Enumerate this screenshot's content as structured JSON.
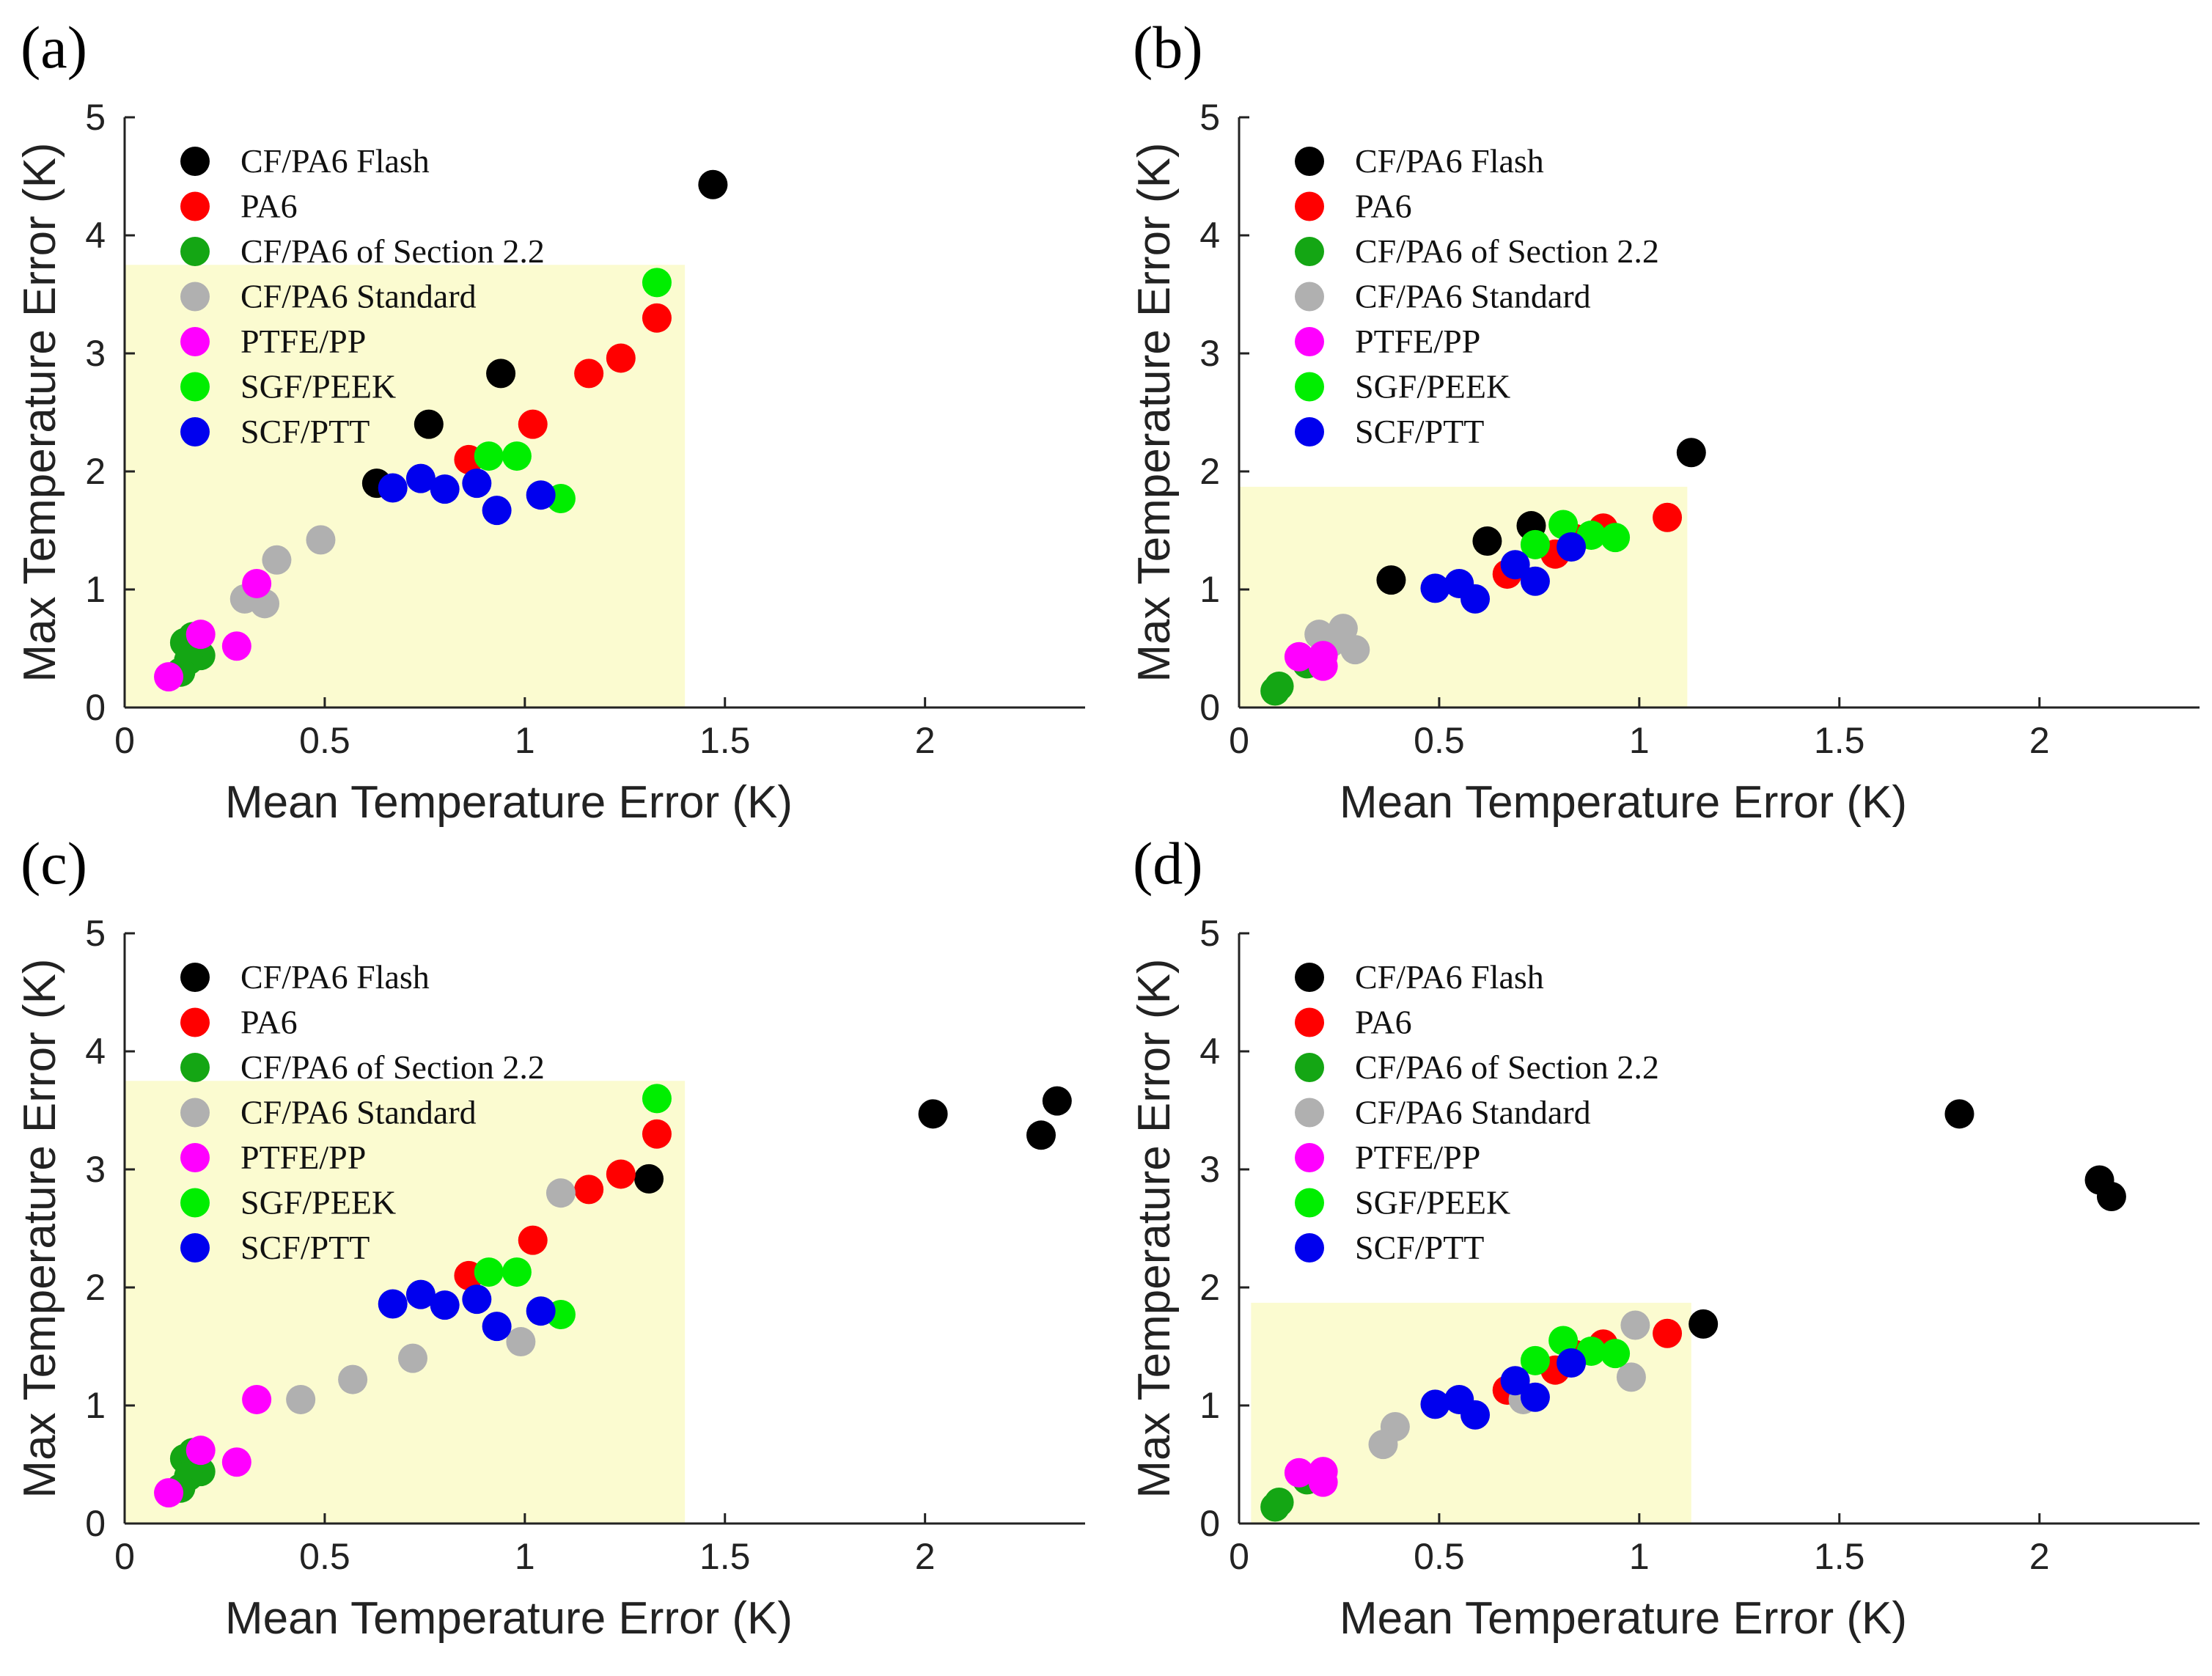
{
  "colors": {
    "background": "#ffffff",
    "highlight": "#fbfbd0",
    "axis": "#222222"
  },
  "chart_data": [
    {
      "type": "scatter",
      "panel": "(a)",
      "xlabel": "Mean Temperature Error (K)",
      "ylabel": "Max Temperature Error (K)",
      "xlim": [
        0,
        2.4
      ],
      "ylim": [
        0,
        5
      ],
      "xticks": [
        0,
        0.5,
        1,
        1.5,
        2
      ],
      "xtick_labels": [
        "0",
        "0.5",
        "1",
        "1.5",
        "2"
      ],
      "yticks": [
        0,
        1,
        2,
        3,
        4,
        5
      ],
      "ytick_labels": [
        "0",
        "1",
        "2",
        "3",
        "4",
        "5"
      ],
      "legend_position": "top-left",
      "highlight_region": {
        "x": [
          0,
          1.4
        ],
        "y": [
          0,
          3.75
        ]
      },
      "series": [
        {
          "name": "CF/PA6 Flash",
          "color": "#000000",
          "x": [
            1.47,
            0.94,
            0.76,
            0.63
          ],
          "y": [
            4.43,
            2.83,
            2.4,
            1.9
          ]
        },
        {
          "name": "PA6",
          "color": "#ff0000",
          "x": [
            1.33,
            1.24,
            1.16,
            1.02,
            0.86
          ],
          "y": [
            3.3,
            2.96,
            2.83,
            2.4,
            2.1
          ]
        },
        {
          "name": "CF/PA6 of Section 2.2",
          "color": "#14a614",
          "x": [
            0.15,
            0.17,
            0.19,
            0.16,
            0.14
          ],
          "y": [
            0.55,
            0.6,
            0.44,
            0.4,
            0.3
          ]
        },
        {
          "name": "CF/PA6 Standard",
          "color": "#b0b0b0",
          "x": [
            0.49,
            0.38,
            0.35,
            0.3
          ],
          "y": [
            1.42,
            1.25,
            0.88,
            0.92
          ]
        },
        {
          "name": "PTFE/PP",
          "color": "#ff00ff",
          "x": [
            0.33,
            0.19,
            0.28,
            0.11
          ],
          "y": [
            1.05,
            0.62,
            0.52,
            0.26
          ]
        },
        {
          "name": "SGF/PEEK",
          "color": "#00ee00",
          "x": [
            1.33,
            0.98,
            0.91,
            1.09
          ],
          "y": [
            3.6,
            2.13,
            2.13,
            1.77
          ]
        },
        {
          "name": "SCF/PTT",
          "color": "#0000ee",
          "x": [
            0.67,
            0.74,
            0.8,
            0.88,
            0.93,
            1.04
          ],
          "y": [
            1.86,
            1.94,
            1.85,
            1.9,
            1.67,
            1.8
          ]
        }
      ]
    },
    {
      "type": "scatter",
      "panel": "(b)",
      "xlabel": "Mean Temperature Error (K)",
      "ylabel": "Max Temperature Error (K)",
      "xlim": [
        0,
        2.4
      ],
      "ylim": [
        0,
        5
      ],
      "xticks": [
        0,
        0.5,
        1,
        1.5,
        2
      ],
      "xtick_labels": [
        "0",
        "0.5",
        "1",
        "1.5",
        "2"
      ],
      "yticks": [
        0,
        1,
        2,
        3,
        4,
        5
      ],
      "ytick_labels": [
        "0",
        "1",
        "2",
        "3",
        "4",
        "5"
      ],
      "legend_position": "top-left",
      "highlight_region": {
        "x": [
          0,
          1.12
        ],
        "y": [
          0,
          1.87
        ]
      },
      "series": [
        {
          "name": "CF/PA6 Flash",
          "color": "#000000",
          "x": [
            1.13,
            0.73,
            0.62,
            0.38
          ],
          "y": [
            2.16,
            1.54,
            1.41,
            1.08
          ]
        },
        {
          "name": "PA6",
          "color": "#ff0000",
          "x": [
            1.07,
            0.91,
            0.84,
            0.79,
            0.67
          ],
          "y": [
            1.61,
            1.52,
            1.43,
            1.3,
            1.13
          ]
        },
        {
          "name": "CF/PA6 of Section 2.2",
          "color": "#14a614",
          "x": [
            0.09,
            0.1,
            0.17
          ],
          "y": [
            0.14,
            0.18,
            0.37
          ]
        },
        {
          "name": "CF/PA6 Standard",
          "color": "#b0b0b0",
          "x": [
            0.2,
            0.26,
            0.29,
            0.23
          ],
          "y": [
            0.62,
            0.67,
            0.49,
            0.55
          ]
        },
        {
          "name": "PTFE/PP",
          "color": "#ff00ff",
          "x": [
            0.15,
            0.21,
            0.21
          ],
          "y": [
            0.43,
            0.44,
            0.35
          ]
        },
        {
          "name": "SGF/PEEK",
          "color": "#00ee00",
          "x": [
            0.81,
            0.74,
            0.88,
            0.94
          ],
          "y": [
            1.55,
            1.38,
            1.46,
            1.44
          ]
        },
        {
          "name": "SCF/PTT",
          "color": "#0000ee",
          "x": [
            0.49,
            0.55,
            0.59,
            0.69,
            0.74,
            0.83
          ],
          "y": [
            1.01,
            1.05,
            0.92,
            1.21,
            1.07,
            1.36
          ]
        }
      ]
    },
    {
      "type": "scatter",
      "panel": "(c)",
      "xlabel": "Mean Temperature Error (K)",
      "ylabel": "Max Temperature Error (K)",
      "xlim": [
        0,
        2.4
      ],
      "ylim": [
        0,
        5
      ],
      "xticks": [
        0,
        0.5,
        1,
        1.5,
        2
      ],
      "xtick_labels": [
        "0",
        "0.5",
        "1",
        "1.5",
        "2"
      ],
      "yticks": [
        0,
        1,
        2,
        3,
        4,
        5
      ],
      "ytick_labels": [
        "0",
        "1",
        "2",
        "3",
        "4",
        "5"
      ],
      "legend_position": "top-left",
      "highlight_region": {
        "x": [
          0,
          1.4
        ],
        "y": [
          0,
          3.75
        ]
      },
      "series": [
        {
          "name": "CF/PA6 Flash",
          "color": "#000000",
          "x": [
            2.33,
            2.02,
            2.29,
            1.31
          ],
          "y": [
            3.58,
            3.47,
            3.29,
            2.92
          ]
        },
        {
          "name": "PA6",
          "color": "#ff0000",
          "x": [
            1.33,
            1.24,
            1.16,
            1.02,
            0.86
          ],
          "y": [
            3.3,
            2.96,
            2.83,
            2.4,
            2.1
          ]
        },
        {
          "name": "CF/PA6 of Section 2.2",
          "color": "#14a614",
          "x": [
            0.15,
            0.17,
            0.19,
            0.16,
            0.14
          ],
          "y": [
            0.55,
            0.6,
            0.44,
            0.4,
            0.3
          ]
        },
        {
          "name": "CF/PA6 Standard",
          "color": "#b0b0b0",
          "x": [
            1.09,
            0.99,
            0.72,
            0.57,
            0.44
          ],
          "y": [
            2.8,
            1.54,
            1.4,
            1.22,
            1.05
          ]
        },
        {
          "name": "PTFE/PP",
          "color": "#ff00ff",
          "x": [
            0.33,
            0.19,
            0.28,
            0.11
          ],
          "y": [
            1.05,
            0.62,
            0.52,
            0.26
          ]
        },
        {
          "name": "SGF/PEEK",
          "color": "#00ee00",
          "x": [
            1.33,
            0.98,
            0.91,
            1.09
          ],
          "y": [
            3.6,
            2.13,
            2.13,
            1.77
          ]
        },
        {
          "name": "SCF/PTT",
          "color": "#0000ee",
          "x": [
            0.67,
            0.74,
            0.8,
            0.88,
            0.93,
            1.04
          ],
          "y": [
            1.86,
            1.94,
            1.85,
            1.9,
            1.67,
            1.8
          ]
        }
      ]
    },
    {
      "type": "scatter",
      "panel": "(d)",
      "xlabel": "Mean Temperature Error (K)",
      "ylabel": "Max Temperature Error (K)",
      "xlim": [
        0,
        2.4
      ],
      "ylim": [
        0,
        5
      ],
      "xticks": [
        0,
        0.5,
        1,
        1.5,
        2
      ],
      "xtick_labels": [
        "0",
        "0.5",
        "1",
        "1.5",
        "2"
      ],
      "yticks": [
        0,
        1,
        2,
        3,
        4,
        5
      ],
      "ytick_labels": [
        "0",
        "1",
        "2",
        "3",
        "4",
        "5"
      ],
      "legend_position": "top-left",
      "highlight_region": {
        "x": [
          0.03,
          1.13
        ],
        "y": [
          0,
          1.87
        ]
      },
      "series": [
        {
          "name": "CF/PA6 Flash",
          "color": "#000000",
          "x": [
            1.8,
            2.15,
            2.18,
            1.16
          ],
          "y": [
            3.47,
            2.91,
            2.77,
            1.69
          ]
        },
        {
          "name": "PA6",
          "color": "#ff0000",
          "x": [
            1.07,
            0.91,
            0.84,
            0.79,
            0.67
          ],
          "y": [
            1.61,
            1.52,
            1.43,
            1.3,
            1.13
          ]
        },
        {
          "name": "CF/PA6 of Section 2.2",
          "color": "#14a614",
          "x": [
            0.09,
            0.1,
            0.17
          ],
          "y": [
            0.14,
            0.18,
            0.37
          ]
        },
        {
          "name": "CF/PA6 Standard",
          "color": "#b0b0b0",
          "x": [
            0.99,
            0.98,
            0.39,
            0.36,
            0.71
          ],
          "y": [
            1.68,
            1.24,
            0.82,
            0.67,
            1.05
          ]
        },
        {
          "name": "PTFE/PP",
          "color": "#ff00ff",
          "x": [
            0.15,
            0.21,
            0.21
          ],
          "y": [
            0.43,
            0.44,
            0.35
          ]
        },
        {
          "name": "SGF/PEEK",
          "color": "#00ee00",
          "x": [
            0.81,
            0.74,
            0.88,
            0.94
          ],
          "y": [
            1.55,
            1.38,
            1.46,
            1.44
          ]
        },
        {
          "name": "SCF/PTT",
          "color": "#0000ee",
          "x": [
            0.49,
            0.55,
            0.59,
            0.69,
            0.74,
            0.83
          ],
          "y": [
            1.01,
            1.05,
            0.92,
            1.21,
            1.07,
            1.36
          ]
        }
      ]
    }
  ]
}
